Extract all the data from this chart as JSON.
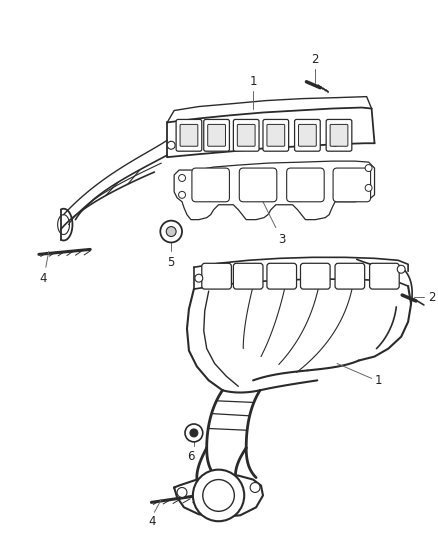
{
  "background_color": "#ffffff",
  "fig_width": 4.38,
  "fig_height": 5.33,
  "dpi": 100,
  "line_color": "#2a2a2a",
  "callout_color": "#666666",
  "label_color": "#222222",
  "label_fontsize": 8.5
}
